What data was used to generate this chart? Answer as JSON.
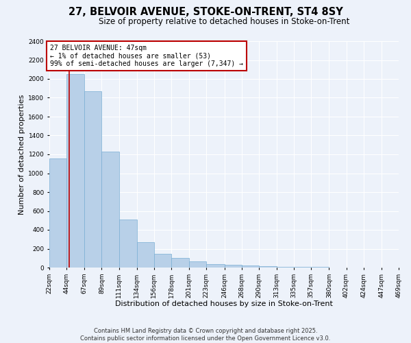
{
  "title": "27, BELVOIR AVENUE, STOKE-ON-TRENT, ST4 8SY",
  "subtitle": "Size of property relative to detached houses in Stoke-on-Trent",
  "xlabel": "Distribution of detached houses by size in Stoke-on-Trent",
  "ylabel": "Number of detached properties",
  "bar_color": "#b8d0e8",
  "bar_edge_color": "#7aaed4",
  "annotation_box_color": "#bb0000",
  "annotation_lines": [
    "27 BELVOIR AVENUE: 47sqm",
    "← 1% of detached houses are smaller (53)",
    "99% of semi-detached houses are larger (7,347) →"
  ],
  "property_sqm": 47,
  "bin_edges": [
    22,
    44,
    67,
    89,
    111,
    134,
    156,
    178,
    201,
    223,
    246,
    268,
    290,
    313,
    335,
    357,
    380,
    402,
    424,
    447,
    469
  ],
  "bin_counts": [
    1160,
    2050,
    1870,
    1230,
    510,
    270,
    145,
    100,
    65,
    40,
    30,
    20,
    15,
    10,
    8,
    5,
    3,
    2,
    1,
    1
  ],
  "ylim": [
    0,
    2400
  ],
  "yticks": [
    0,
    200,
    400,
    600,
    800,
    1000,
    1200,
    1400,
    1600,
    1800,
    2000,
    2200,
    2400
  ],
  "background_color": "#edf2fa",
  "grid_color": "#ffffff",
  "footer_line1": "Contains HM Land Registry data © Crown copyright and database right 2025.",
  "footer_line2": "Contains public sector information licensed under the Open Government Licence v3.0.",
  "title_fontsize": 10.5,
  "subtitle_fontsize": 8.5,
  "axis_label_fontsize": 8,
  "tick_fontsize": 6.5,
  "annotation_fontsize": 7,
  "footer_fontsize": 6
}
